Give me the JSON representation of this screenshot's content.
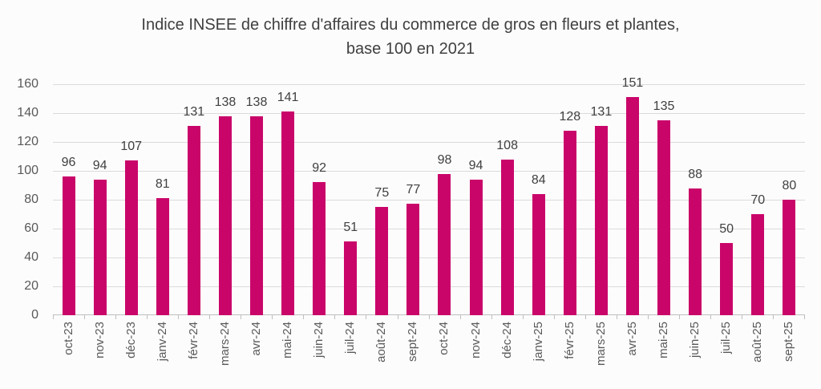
{
  "chart_data": {
    "type": "bar",
    "title": "Indice INSEE de chiffre d'affaires du commerce de gros en fleurs et plantes, base 100 en 2021",
    "title_line1": "Indice INSEE de chiffre d'affaires du commerce de gros en fleurs et plantes,",
    "title_line2": "base 100 en 2021",
    "categories": [
      "oct-23",
      "nov-23",
      "déc-23",
      "janv-24",
      "févr-24",
      "mars-24",
      "avr-24",
      "mai-24",
      "juin-24",
      "juil-24",
      "août-24",
      "sept-24",
      "oct-24",
      "nov-24",
      "déc-24",
      "janv-25",
      "févr-25",
      "mars-25",
      "avr-25",
      "mai-25",
      "juin-25",
      "juil-25",
      "août-25",
      "sept-25"
    ],
    "values": [
      96,
      94,
      107,
      81,
      131,
      138,
      138,
      141,
      92,
      51,
      75,
      77,
      98,
      94,
      108,
      84,
      128,
      131,
      151,
      135,
      88,
      50,
      70,
      80
    ],
    "xlabel": "",
    "ylabel": "",
    "ylim": [
      0,
      160
    ],
    "ytick_step": 20,
    "grid": true,
    "legend_position": "none",
    "colors": {
      "bar": "#C9056A",
      "title_text": "#404040",
      "value_label_text": "#404040",
      "axis_text": "#595959",
      "gridline": "#DCDBDB",
      "axis_line": "#BFBFBF",
      "background": "#FDFCFC"
    }
  }
}
